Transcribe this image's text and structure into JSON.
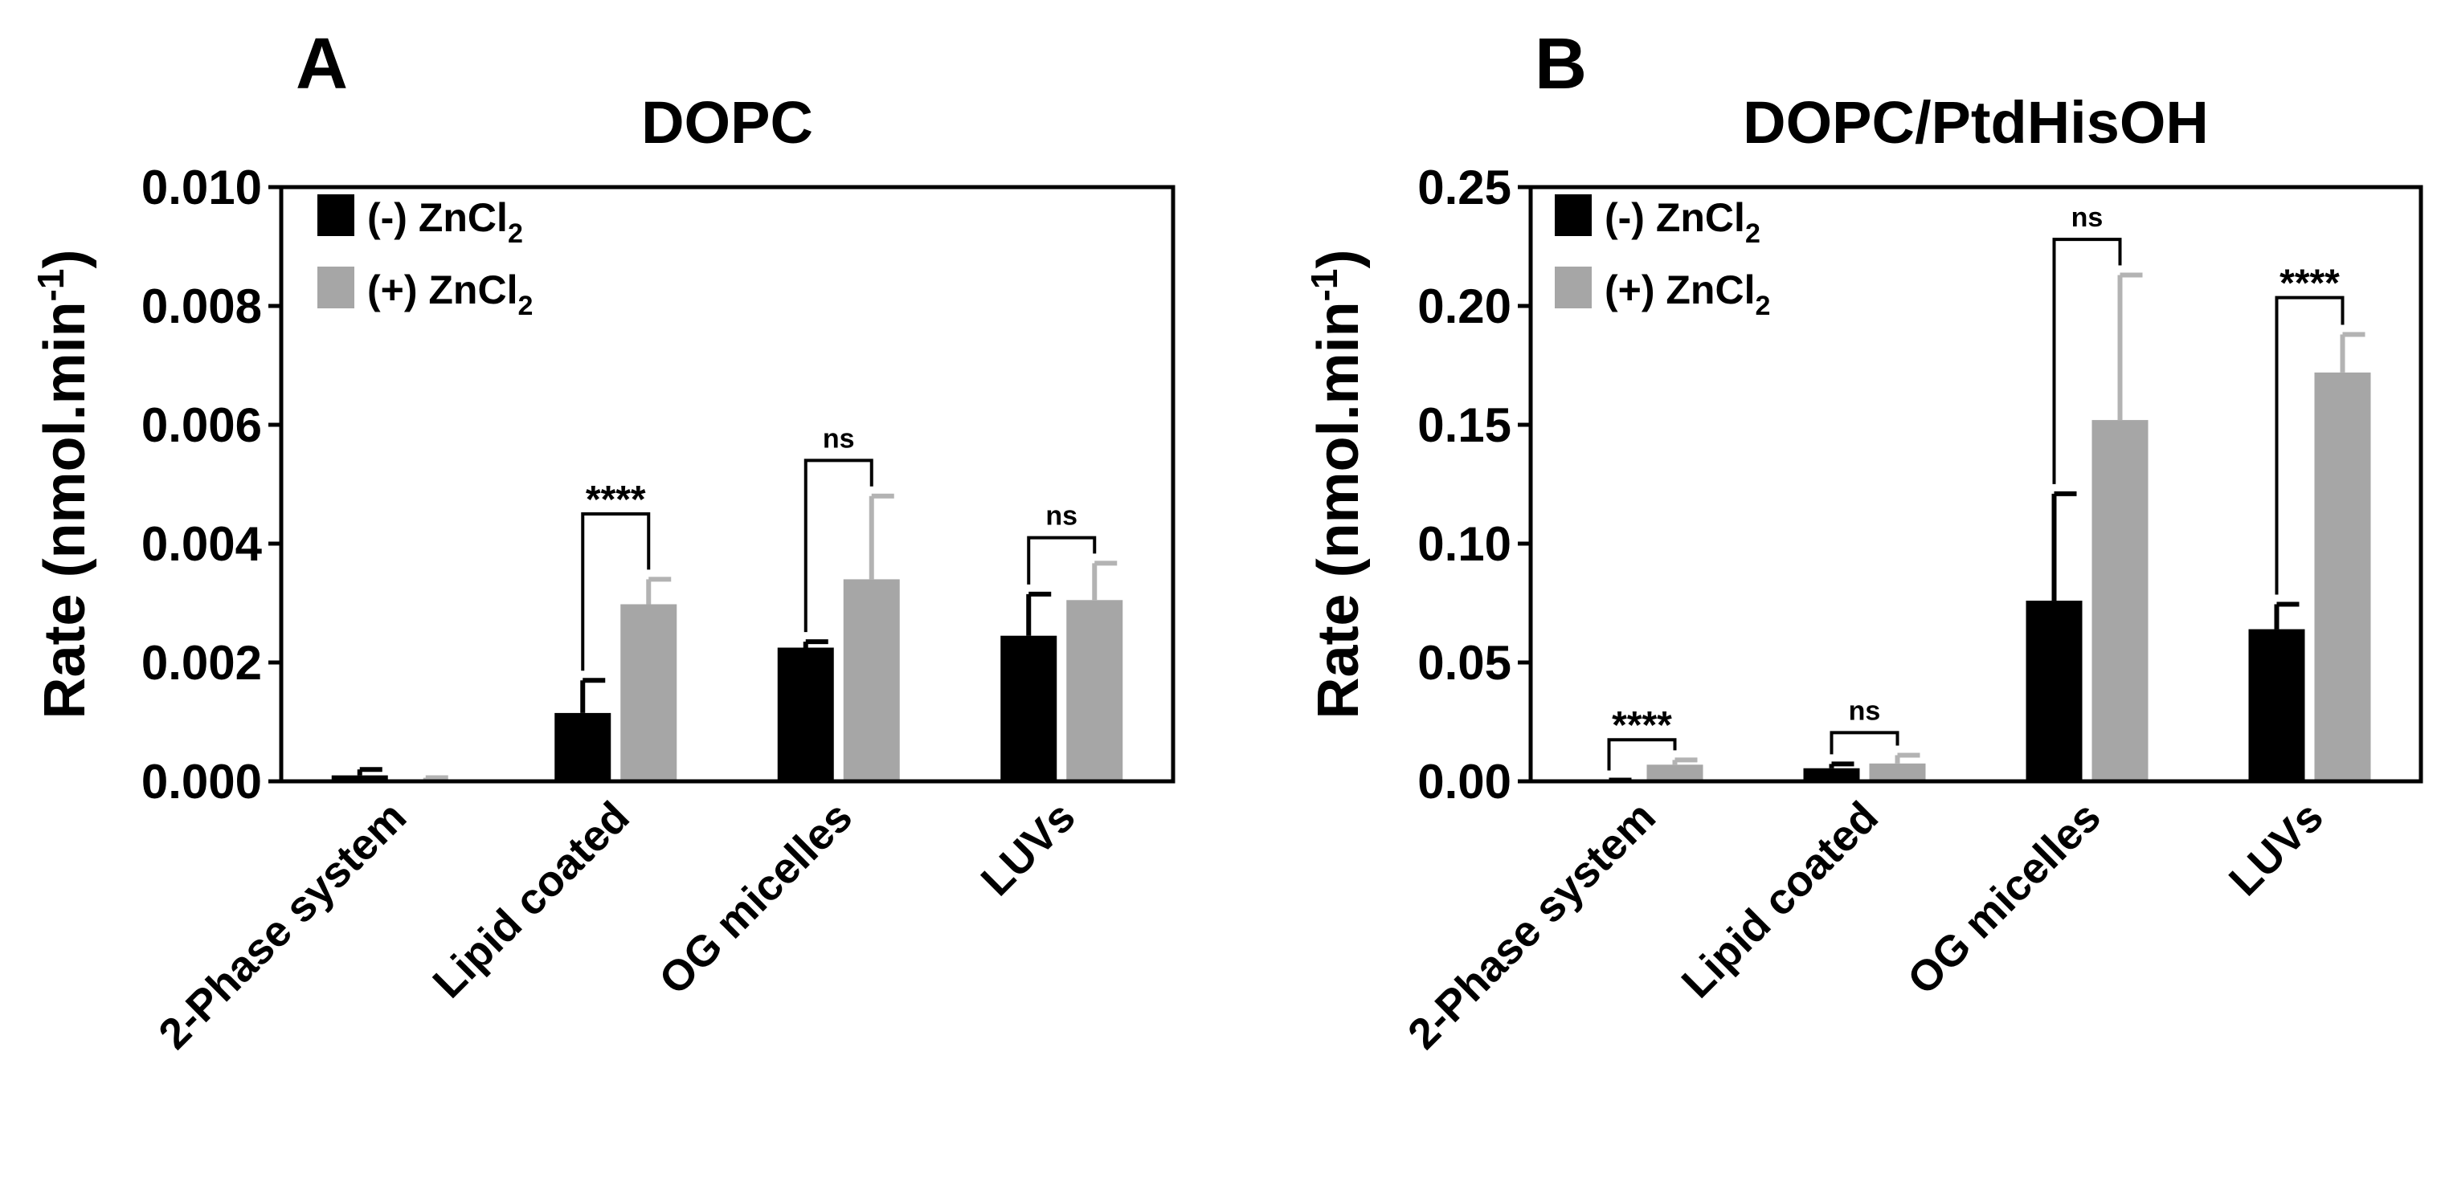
{
  "colors": {
    "no_zn": "#000000",
    "with_zn": "#a6a6a6",
    "no_zn_error": "#000000",
    "with_zn_error": "#b3b3b3",
    "axis": "#000000"
  },
  "chart_data": [
    {
      "type": "bar",
      "panel_letter": "A",
      "title": "DOPC",
      "ylabel": "Rate (nmol.min",
      "ylabel_superscript": "-1",
      "ylabel_close": ")",
      "xlabel": "",
      "ylim": [
        0,
        0.01
      ],
      "yticks": [
        0,
        0.002,
        0.004,
        0.006,
        0.008,
        0.01
      ],
      "ytick_labels": [
        "0.000",
        "0.002",
        "0.004",
        "0.006",
        "0.008",
        "0.010"
      ],
      "categories": [
        "2-Phase system",
        "Lipid coated",
        "OG micelles",
        "LUVs"
      ],
      "legend_position": "top-left",
      "series": [
        {
          "name": "(-) ZnCl",
          "name_subscript": "2",
          "color_key": "no_zn",
          "values": [
            0.0001,
            0.00115,
            0.00225,
            0.00245
          ],
          "errors": [
            0.0001,
            0.00055,
            0.0001,
            0.0007
          ]
        },
        {
          "name": "(+) ZnCl",
          "name_subscript": "2",
          "color_key": "with_zn",
          "values": [
            3e-05,
            0.00298,
            0.0034,
            0.00305
          ],
          "errors": [
            3e-05,
            0.00042,
            0.0014,
            0.00062
          ]
        }
      ],
      "significance": [
        {
          "category_index": 1,
          "label": "****",
          "y": 0.0045
        },
        {
          "category_index": 2,
          "label": "ns",
          "y": 0.0054
        },
        {
          "category_index": 3,
          "label": "ns",
          "y": 0.0041
        }
      ]
    },
    {
      "type": "bar",
      "panel_letter": "B",
      "title": "DOPC/PtdHisOH",
      "ylabel": "Rate (nmol.min",
      "ylabel_superscript": "-1",
      "ylabel_close": ")",
      "xlabel": "",
      "ylim": [
        0,
        0.25
      ],
      "yticks": [
        0,
        0.05,
        0.1,
        0.15,
        0.2,
        0.25
      ],
      "ytick_labels": [
        "0.00",
        "0.05",
        "0.10",
        "0.15",
        "0.20",
        "0.25"
      ],
      "categories": [
        "2-Phase system",
        "Lipid coated",
        "OG micelles",
        "LUVs"
      ],
      "legend_position": "top-left",
      "series": [
        {
          "name": "(-) ZnCl",
          "name_subscript": "2",
          "color_key": "no_zn",
          "values": [
            0.0003,
            0.0055,
            0.076,
            0.064
          ],
          "errors": [
            0.0002,
            0.0018,
            0.045,
            0.0105
          ]
        },
        {
          "name": "(+) ZnCl",
          "name_subscript": "2",
          "color_key": "with_zn",
          "values": [
            0.007,
            0.0075,
            0.152,
            0.172
          ],
          "errors": [
            0.002,
            0.0035,
            0.061,
            0.016
          ]
        }
      ],
      "significance": [
        {
          "category_index": 0,
          "label": "****",
          "y": 0.0175
        },
        {
          "category_index": 1,
          "label": "ns",
          "y": 0.0205
        },
        {
          "category_index": 2,
          "label": "ns",
          "y": 0.228
        },
        {
          "category_index": 3,
          "label": "****",
          "y": 0.2035
        }
      ]
    }
  ]
}
